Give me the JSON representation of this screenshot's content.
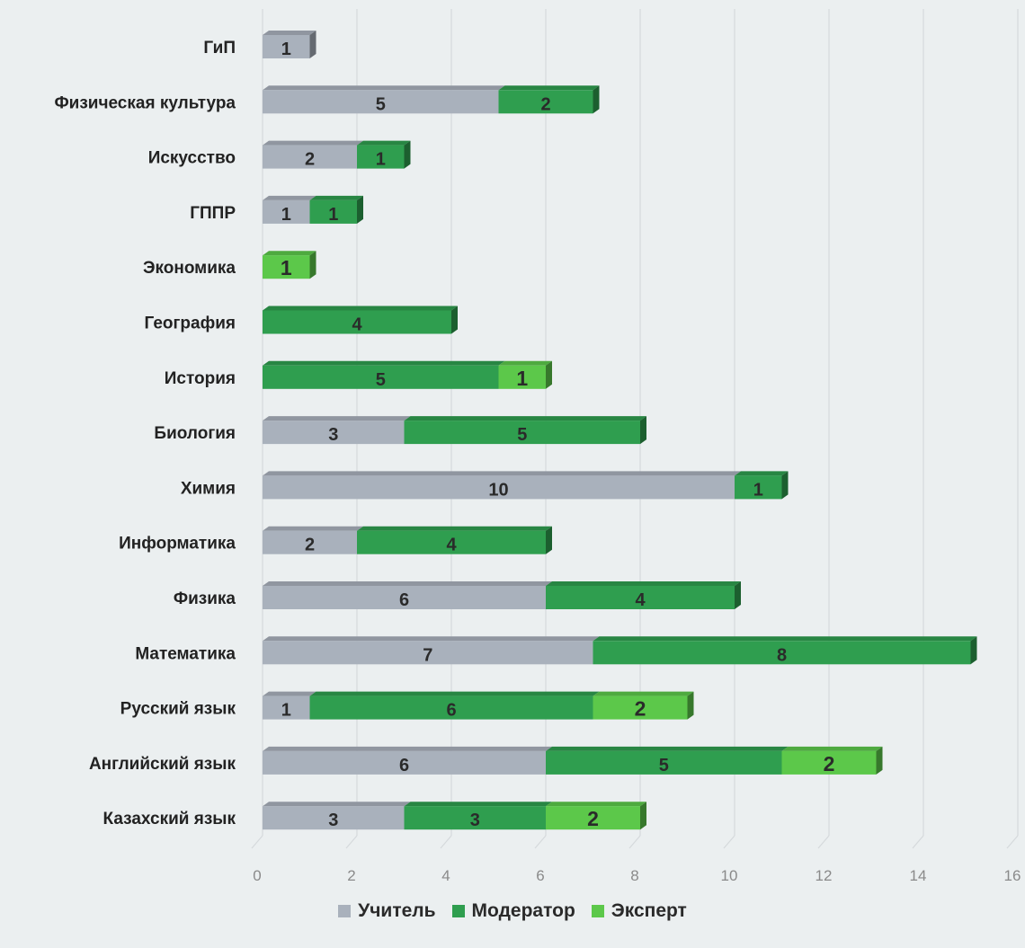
{
  "chart_data": {
    "type": "bar",
    "orientation": "horizontal",
    "stacked": true,
    "categories": [
      "ГиП",
      "Физическая культура",
      "Искусство",
      "ГППР",
      "Экономика",
      "География",
      "История",
      "Биология",
      "Химия",
      "Информатика",
      "Физика",
      "Математика",
      "Русский язык",
      "Английский язык",
      "Казахский язык"
    ],
    "series": [
      {
        "name": "Учитель",
        "color": "#a9b1bc",
        "values": [
          1,
          5,
          2,
          1,
          null,
          null,
          null,
          3,
          10,
          2,
          6,
          7,
          1,
          6,
          3
        ]
      },
      {
        "name": "Модератор",
        "color": "#2f9e4f",
        "values": [
          null,
          2,
          1,
          1,
          null,
          4,
          5,
          5,
          1,
          4,
          4,
          8,
          6,
          5,
          3
        ]
      },
      {
        "name": "Эксперт",
        "color": "#5cc84a",
        "values": [
          null,
          null,
          null,
          null,
          1,
          null,
          1,
          null,
          null,
          null,
          null,
          null,
          2,
          2,
          2
        ]
      }
    ],
    "xlim": [
      0,
      16
    ],
    "xticks": [
      "0",
      "2",
      "4",
      "6",
      "8",
      "10",
      "12",
      "14",
      "16"
    ],
    "grid": true,
    "legend_position": "bottom"
  }
}
